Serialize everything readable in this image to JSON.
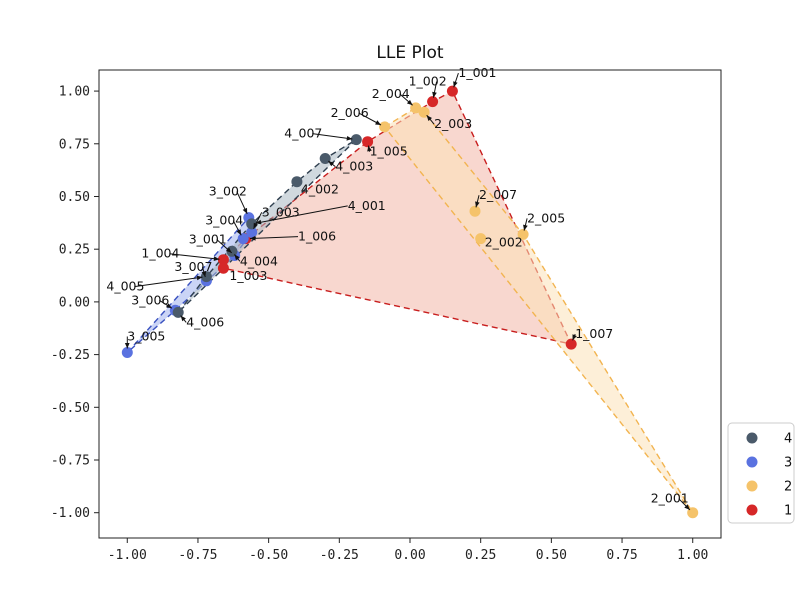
{
  "chart_data": {
    "type": "scatter",
    "title": "LLE Plot",
    "xlabel": "",
    "ylabel": "",
    "xlim": [
      -1.1,
      1.1
    ],
    "ylim": [
      -1.12,
      1.1
    ],
    "x_ticks": [
      -1.0,
      -0.75,
      -0.5,
      -0.25,
      0.0,
      0.25,
      0.5,
      0.75,
      1.0
    ],
    "y_ticks": [
      1.0,
      0.75,
      0.5,
      0.25,
      0.0,
      -0.25,
      -0.5,
      -0.75,
      -1.0
    ],
    "x_tick_labels": [
      "-1.00",
      "-0.75",
      "-0.50",
      "-0.25",
      "0.00",
      "0.25",
      "0.50",
      "0.75",
      "1.00"
    ],
    "y_tick_labels": [
      "1.00",
      "0.75",
      "0.50",
      "0.25",
      "0.00",
      "-0.25",
      "-0.50",
      "-0.75",
      "-1.00"
    ],
    "grid": false,
    "legend_position": "bottom-right",
    "series": [
      {
        "name": "4",
        "color": "#4a5a6a",
        "hull_fill": "#aab8c2",
        "hull_edge": "#2f3f4f",
        "points": [
          {
            "label": "4_007",
            "x": -0.19,
            "y": 0.77
          },
          {
            "label": "4_003",
            "x": -0.3,
            "y": 0.68
          },
          {
            "label": "4_002",
            "x": -0.4,
            "y": 0.57
          },
          {
            "label": "4_001",
            "x": -0.56,
            "y": 0.37
          },
          {
            "label": "4_004",
            "x": -0.63,
            "y": 0.24
          },
          {
            "label": "4_005",
            "x": -0.72,
            "y": 0.12
          },
          {
            "label": "4_006",
            "x": -0.82,
            "y": -0.05
          }
        ]
      },
      {
        "name": "3",
        "color": "#5a72e0",
        "hull_fill": "#9fb0ee",
        "hull_edge": "#3a52c0",
        "points": [
          {
            "label": "3_002",
            "x": -0.57,
            "y": 0.4
          },
          {
            "label": "3_003",
            "x": -0.56,
            "y": 0.33
          },
          {
            "label": "3_004",
            "x": -0.59,
            "y": 0.3
          },
          {
            "label": "3_001",
            "x": -0.62,
            "y": 0.22
          },
          {
            "label": "3_007",
            "x": -0.72,
            "y": 0.1
          },
          {
            "label": "3_006",
            "x": -0.83,
            "y": -0.04
          },
          {
            "label": "3_005",
            "x": -1.0,
            "y": -0.24
          }
        ]
      },
      {
        "name": "2",
        "color": "#f5c36a",
        "hull_fill": "#fbe2b8",
        "hull_edge": "#f2b450",
        "points": [
          {
            "label": "2_004",
            "x": 0.02,
            "y": 0.92
          },
          {
            "label": "2_003",
            "x": 0.05,
            "y": 0.9
          },
          {
            "label": "2_006",
            "x": -0.09,
            "y": 0.83
          },
          {
            "label": "2_007",
            "x": 0.23,
            "y": 0.43
          },
          {
            "label": "2_005",
            "x": 0.4,
            "y": 0.32
          },
          {
            "label": "2_002",
            "x": 0.25,
            "y": 0.3
          },
          {
            "label": "2_001",
            "x": 1.0,
            "y": -1.0
          }
        ]
      },
      {
        "name": "1",
        "color": "#d62728",
        "hull_fill": "#f2b7a8",
        "hull_edge": "#c81e1e",
        "points": [
          {
            "label": "1_001",
            "x": 0.15,
            "y": 1.0
          },
          {
            "label": "1_002",
            "x": 0.08,
            "y": 0.95
          },
          {
            "label": "1_005",
            "x": -0.15,
            "y": 0.76
          },
          {
            "label": "1_006",
            "x": -0.58,
            "y": 0.3
          },
          {
            "label": "1_004",
            "x": -0.66,
            "y": 0.2
          },
          {
            "label": "1_003",
            "x": -0.66,
            "y": 0.16
          },
          {
            "label": "1_007",
            "x": 0.57,
            "y": -0.2
          }
        ]
      }
    ],
    "legend_order": [
      "4",
      "3",
      "2",
      "1"
    ]
  }
}
